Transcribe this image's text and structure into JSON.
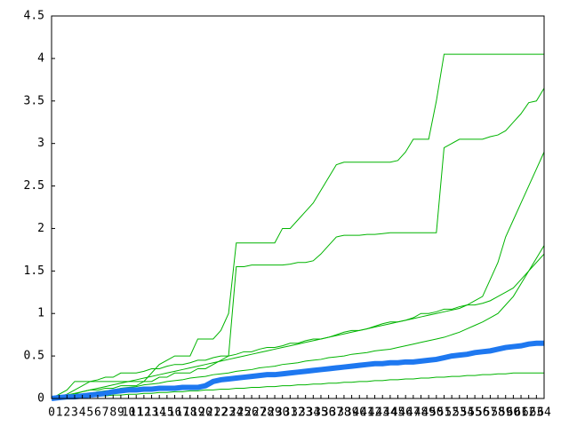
{
  "chart_data": {
    "type": "line",
    "x": [
      0,
      1,
      2,
      3,
      4,
      5,
      6,
      7,
      8,
      9,
      10,
      11,
      12,
      13,
      14,
      15,
      16,
      17,
      18,
      19,
      20,
      21,
      22,
      23,
      24,
      25,
      26,
      27,
      28,
      29,
      30,
      31,
      32,
      33,
      34,
      35,
      36,
      37,
      38,
      39,
      40,
      41,
      42,
      43,
      44,
      45,
      46,
      47,
      48,
      49,
      50,
      51,
      52,
      53,
      54,
      55,
      56,
      57,
      58,
      59,
      60,
      61,
      62,
      63,
      64
    ],
    "xlim": [
      0,
      64
    ],
    "xticks": [
      0,
      1,
      2,
      3,
      4,
      5,
      6,
      7,
      8,
      9,
      10,
      11,
      12,
      13,
      14,
      15,
      16,
      17,
      18,
      19,
      20,
      21,
      22,
      23,
      24,
      25,
      26,
      27,
      28,
      29,
      30,
      31,
      32,
      33,
      34,
      35,
      36,
      37,
      38,
      39,
      40,
      41,
      42,
      43,
      44,
      45,
      46,
      47,
      48,
      49,
      50,
      51,
      52,
      53,
      54,
      55,
      56,
      57,
      58,
      59,
      60,
      61,
      62,
      63,
      64
    ],
    "ylim": [
      0,
      4.5
    ],
    "yticks": [
      0,
      0.5,
      1,
      1.5,
      2,
      2.5,
      3,
      3.5,
      4,
      4.5
    ],
    "grid": false,
    "series": [
      {
        "color": "#00b400",
        "values": [
          0,
          0.02,
          0.05,
          0.1,
          0.15,
          0.2,
          0.2,
          0.2,
          0.2,
          0.2,
          0.2,
          0.2,
          0.2,
          0.3,
          0.4,
          0.45,
          0.5,
          0.5,
          0.5,
          0.7,
          0.7,
          0.7,
          0.8,
          1.0,
          1.83,
          1.83,
          1.83,
          1.83,
          1.83,
          1.83,
          2.0,
          2.0,
          2.1,
          2.2,
          2.3,
          2.45,
          2.6,
          2.75,
          2.78,
          2.78,
          2.78,
          2.78,
          2.78,
          2.78,
          2.78,
          2.8,
          2.9,
          3.05,
          3.05,
          3.05,
          3.5,
          4.05,
          4.05,
          4.05,
          4.05,
          4.05,
          4.05,
          4.05,
          4.05,
          4.05,
          4.05,
          4.05,
          4.05,
          4.05,
          4.05
        ]
      },
      {
        "color": "#00b400",
        "values": [
          0,
          0.01,
          0.03,
          0.05,
          0.08,
          0.1,
          0.1,
          0.12,
          0.12,
          0.15,
          0.15,
          0.15,
          0.2,
          0.2,
          0.25,
          0.25,
          0.3,
          0.3,
          0.3,
          0.35,
          0.35,
          0.4,
          0.45,
          0.5,
          1.55,
          1.55,
          1.57,
          1.57,
          1.57,
          1.57,
          1.57,
          1.58,
          1.6,
          1.6,
          1.62,
          1.7,
          1.8,
          1.9,
          1.92,
          1.92,
          1.92,
          1.93,
          1.93,
          1.94,
          1.95,
          1.95,
          1.95,
          1.95,
          1.95,
          1.95,
          1.95,
          2.95,
          3.0,
          3.05,
          3.05,
          3.05,
          3.05,
          3.08,
          3.1,
          3.15,
          3.25,
          3.35,
          3.48,
          3.5,
          3.65
        ]
      },
      {
        "color": "#00b400",
        "values": [
          0,
          0.02,
          0.04,
          0.06,
          0.08,
          0.1,
          0.12,
          0.14,
          0.16,
          0.18,
          0.2,
          0.22,
          0.24,
          0.26,
          0.28,
          0.3,
          0.32,
          0.34,
          0.36,
          0.38,
          0.4,
          0.42,
          0.44,
          0.46,
          0.48,
          0.5,
          0.52,
          0.54,
          0.56,
          0.58,
          0.6,
          0.62,
          0.64,
          0.66,
          0.68,
          0.7,
          0.72,
          0.74,
          0.76,
          0.78,
          0.8,
          0.82,
          0.84,
          0.86,
          0.88,
          0.9,
          0.92,
          0.94,
          0.96,
          0.98,
          1.0,
          1.02,
          1.04,
          1.06,
          1.1,
          1.15,
          1.2,
          1.4,
          1.6,
          1.9,
          2.1,
          2.3,
          2.5,
          2.7,
          2.9
        ]
      },
      {
        "color": "#00b400",
        "values": [
          0,
          0,
          0.02,
          0.03,
          0.05,
          0.06,
          0.08,
          0.09,
          0.1,
          0.12,
          0.13,
          0.14,
          0.16,
          0.17,
          0.18,
          0.2,
          0.21,
          0.22,
          0.24,
          0.25,
          0.26,
          0.28,
          0.29,
          0.3,
          0.32,
          0.33,
          0.34,
          0.36,
          0.37,
          0.38,
          0.4,
          0.41,
          0.42,
          0.44,
          0.45,
          0.46,
          0.48,
          0.49,
          0.5,
          0.52,
          0.53,
          0.54,
          0.56,
          0.57,
          0.58,
          0.6,
          0.62,
          0.64,
          0.66,
          0.68,
          0.7,
          0.72,
          0.75,
          0.78,
          0.82,
          0.86,
          0.9,
          0.95,
          1.0,
          1.1,
          1.2,
          1.35,
          1.5,
          1.65,
          1.8
        ]
      },
      {
        "color": "#00b400",
        "values": [
          0,
          0,
          0.01,
          0.01,
          0.02,
          0.02,
          0.03,
          0.03,
          0.04,
          0.04,
          0.05,
          0.05,
          0.06,
          0.06,
          0.07,
          0.07,
          0.08,
          0.08,
          0.09,
          0.09,
          0.1,
          0.1,
          0.11,
          0.11,
          0.12,
          0.12,
          0.13,
          0.13,
          0.14,
          0.14,
          0.15,
          0.15,
          0.16,
          0.16,
          0.17,
          0.17,
          0.18,
          0.18,
          0.19,
          0.19,
          0.2,
          0.2,
          0.21,
          0.21,
          0.22,
          0.22,
          0.23,
          0.23,
          0.24,
          0.24,
          0.25,
          0.25,
          0.26,
          0.26,
          0.27,
          0.27,
          0.28,
          0.28,
          0.29,
          0.29,
          0.3,
          0.3,
          0.3,
          0.3,
          0.3
        ]
      },
      {
        "color": "#00b400",
        "values": [
          0,
          0.05,
          0.1,
          0.2,
          0.2,
          0.2,
          0.22,
          0.25,
          0.25,
          0.3,
          0.3,
          0.3,
          0.32,
          0.35,
          0.35,
          0.38,
          0.4,
          0.4,
          0.42,
          0.45,
          0.45,
          0.48,
          0.5,
          0.5,
          0.52,
          0.55,
          0.55,
          0.58,
          0.6,
          0.6,
          0.62,
          0.65,
          0.65,
          0.68,
          0.7,
          0.7,
          0.72,
          0.75,
          0.78,
          0.8,
          0.8,
          0.82,
          0.85,
          0.88,
          0.9,
          0.9,
          0.92,
          0.95,
          1.0,
          1.0,
          1.02,
          1.05,
          1.05,
          1.08,
          1.1,
          1.1,
          1.12,
          1.15,
          1.2,
          1.25,
          1.3,
          1.4,
          1.5,
          1.6,
          1.7
        ]
      },
      {
        "color": "#1e78f0",
        "values": [
          0,
          0.01,
          0.02,
          0.02,
          0.03,
          0.04,
          0.05,
          0.06,
          0.08,
          0.09,
          0.1,
          0.1,
          0.11,
          0.11,
          0.12,
          0.12,
          0.12,
          0.13,
          0.13,
          0.13,
          0.15,
          0.2,
          0.22,
          0.23,
          0.24,
          0.25,
          0.26,
          0.27,
          0.28,
          0.28,
          0.29,
          0.3,
          0.31,
          0.32,
          0.33,
          0.34,
          0.35,
          0.36,
          0.37,
          0.38,
          0.39,
          0.4,
          0.41,
          0.41,
          0.42,
          0.42,
          0.43,
          0.43,
          0.44,
          0.45,
          0.46,
          0.48,
          0.5,
          0.51,
          0.52,
          0.54,
          0.55,
          0.56,
          0.58,
          0.6,
          0.61,
          0.62,
          0.64,
          0.65,
          0.65
        ]
      }
    ]
  }
}
